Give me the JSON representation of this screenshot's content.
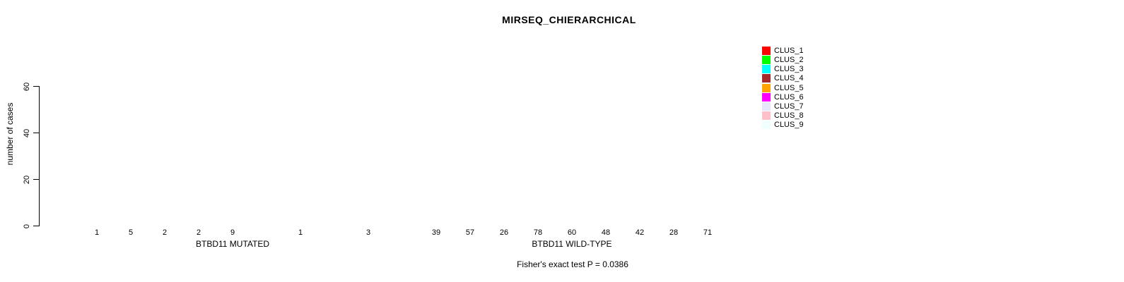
{
  "chart_data": {
    "type": "bar",
    "title": "MIRSEQ_CHIERARCHICAL",
    "ylabel": "number of cases",
    "ylim": [
      0,
      78
    ],
    "yticks": [
      0,
      20,
      40,
      60
    ],
    "grid": false,
    "legend_position": "right-outside",
    "legend": [
      {
        "label": "CLUS_1",
        "color": "#FF0000"
      },
      {
        "label": "CLUS_2",
        "color": "#00FF00"
      },
      {
        "label": "CLUS_3",
        "color": "#00FFFF"
      },
      {
        "label": "CLUS_4",
        "color": "#A52A2A"
      },
      {
        "label": "CLUS_5",
        "color": "#FFA500"
      },
      {
        "label": "CLUS_6",
        "color": "#FF00FF"
      },
      {
        "label": "CLUS_7",
        "color": "#E6E6FA"
      },
      {
        "label": "CLUS_8",
        "color": "#FFC0CB"
      },
      {
        "label": "CLUS_9",
        "color": "#F0FFFF"
      }
    ],
    "groups": [
      {
        "xlabel": "BTBD11 MUTATED",
        "categories": [
          "CLUS_1",
          "CLUS_2",
          "CLUS_3",
          "CLUS_4",
          "CLUS_5",
          "CLUS_6",
          "CLUS_7",
          "CLUS_8",
          "CLUS_9"
        ],
        "values": [
          1,
          5,
          2,
          2,
          9,
          0,
          1,
          0,
          3
        ],
        "bar_labels": [
          "1",
          "5",
          "2",
          "2",
          "9",
          "",
          "1",
          "",
          "3"
        ]
      },
      {
        "xlabel": "BTBD11 WILD-TYPE",
        "categories": [
          "CLUS_1",
          "CLUS_2",
          "CLUS_3",
          "CLUS_4",
          "CLUS_5",
          "CLUS_6",
          "CLUS_7",
          "CLUS_8",
          "CLUS_9"
        ],
        "values": [
          39,
          57,
          26,
          78,
          60,
          48,
          42,
          28,
          71
        ],
        "bar_labels": [
          "39",
          "57",
          "26",
          "78",
          "60",
          "48",
          "42",
          "28",
          "71"
        ]
      }
    ],
    "annotation": "Fisher's exact test P = 0.0386",
    "text_color": "#000000",
    "background_color": "#FFFFFF"
  }
}
